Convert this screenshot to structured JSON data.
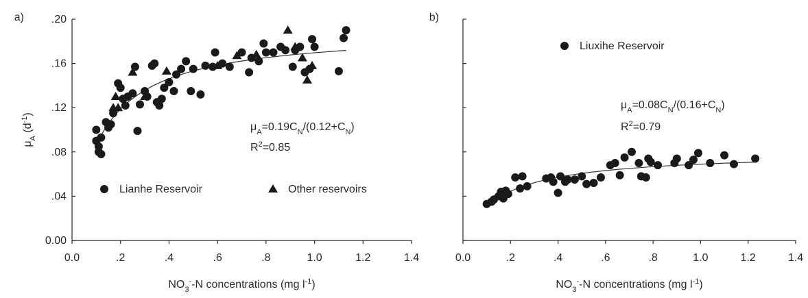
{
  "chart_data": [
    {
      "type": "scatter",
      "label": "a)",
      "xlabel": [
        {
          "text": "NO"
        },
        {
          "text": "3",
          "shift": "sub"
        },
        {
          "text": "-",
          "shift": "sup"
        },
        {
          "text": "-N concentrations (mg l"
        },
        {
          "text": "-1",
          "shift": "sup"
        },
        {
          "text": ")"
        }
      ],
      "ylabel": [
        {
          "text": "μ"
        },
        {
          "text": "A",
          "shift": "sub"
        },
        {
          "text": " (d"
        },
        {
          "text": "-1",
          "shift": "sup"
        },
        {
          "text": ")"
        }
      ],
      "equation": [
        {
          "text": "μ"
        },
        {
          "text": "A",
          "shift": "sub"
        },
        {
          "text": "=0.19C"
        },
        {
          "text": "N",
          "shift": "sub"
        },
        {
          "text": "/(0.12+C"
        },
        {
          "text": "N",
          "shift": "sub"
        },
        {
          "text": ")"
        }
      ],
      "r2": [
        {
          "text": "R"
        },
        {
          "text": "2",
          "shift": "sup"
        },
        {
          "text": "=0.85"
        }
      ],
      "xlim": [
        0,
        1.4
      ],
      "ylim": [
        0,
        0.2
      ],
      "xticks": [
        {
          "value": 0,
          "label": "0.0"
        },
        {
          "value": 0.2,
          "label": ".2"
        },
        {
          "value": 0.4,
          "label": ".4"
        },
        {
          "value": 0.6,
          "label": ".6"
        },
        {
          "value": 0.8,
          "label": ".8"
        },
        {
          "value": 1,
          "label": "1.0"
        },
        {
          "value": 1.2,
          "label": "1.2"
        },
        {
          "value": 1.4,
          "label": "1.4"
        }
      ],
      "yticks": [
        {
          "value": 0,
          "label": "0.00"
        },
        {
          "value": 0.04,
          "label": ".04"
        },
        {
          "value": 0.08,
          "label": ".08"
        },
        {
          "value": 0.12,
          "label": ".12"
        },
        {
          "value": 0.16,
          "label": ".16"
        },
        {
          "value": 0.2,
          "label": ".20"
        }
      ],
      "fit": {
        "a": 0.19,
        "k": 0.12,
        "xrange": [
          0.1,
          1.13
        ]
      },
      "series": [
        {
          "name": "Lianhe Reservoir",
          "marker": "circle",
          "color": "#1a1a1a",
          "x": [
            0.1,
            0.1,
            0.11,
            0.11,
            0.12,
            0.12,
            0.14,
            0.15,
            0.16,
            0.17,
            0.19,
            0.2,
            0.21,
            0.22,
            0.23,
            0.25,
            0.26,
            0.27,
            0.28,
            0.3,
            0.31,
            0.33,
            0.34,
            0.35,
            0.36,
            0.37,
            0.38,
            0.4,
            0.42,
            0.43,
            0.45,
            0.47,
            0.49,
            0.5,
            0.53,
            0.55,
            0.58,
            0.59,
            0.62,
            0.65,
            0.7,
            0.73,
            0.74,
            0.77,
            0.79,
            0.8,
            0.83,
            0.86,
            0.88,
            0.91,
            0.92,
            0.94,
            0.96,
            0.98,
            0.99,
            1.0,
            1.1,
            1.12,
            1.13
          ],
          "values": [
            0.1,
            0.09,
            0.085,
            0.08,
            0.078,
            0.093,
            0.107,
            0.102,
            0.105,
            0.115,
            0.142,
            0.138,
            0.128,
            0.122,
            0.13,
            0.133,
            0.157,
            0.099,
            0.123,
            0.135,
            0.13,
            0.158,
            0.16,
            0.125,
            0.122,
            0.128,
            0.138,
            0.143,
            0.135,
            0.15,
            0.155,
            0.162,
            0.135,
            0.155,
            0.132,
            0.158,
            0.157,
            0.17,
            0.16,
            0.157,
            0.17,
            0.152,
            0.165,
            0.162,
            0.178,
            0.17,
            0.17,
            0.175,
            0.172,
            0.157,
            0.172,
            0.175,
            0.152,
            0.155,
            0.182,
            0.175,
            0.153,
            0.183,
            0.19
          ]
        },
        {
          "name": "Other reservoirs",
          "marker": "triangle",
          "color": "#1a1a1a",
          "x": [
            0.17,
            0.18,
            0.19,
            0.25,
            0.3,
            0.39,
            0.6,
            0.68,
            0.76,
            0.89,
            0.92,
            0.97,
            0.99,
            0.95
          ],
          "values": [
            0.12,
            0.13,
            0.12,
            0.152,
            0.13,
            0.153,
            0.158,
            0.167,
            0.168,
            0.19,
            0.175,
            0.145,
            0.158,
            0.165
          ]
        }
      ]
    },
    {
      "type": "scatter",
      "label": "b)",
      "xlabel": [
        {
          "text": "NO"
        },
        {
          "text": "3",
          "shift": "sub"
        },
        {
          "text": "-",
          "shift": "sup"
        },
        {
          "text": "-N concentrations (mg l"
        },
        {
          "text": "-1",
          "shift": "sup"
        },
        {
          "text": ")"
        }
      ],
      "equation": [
        {
          "text": "μ"
        },
        {
          "text": "A",
          "shift": "sub"
        },
        {
          "text": "=0.08C"
        },
        {
          "text": "N",
          "shift": "sub"
        },
        {
          "text": "/(0.16+C"
        },
        {
          "text": "N",
          "shift": "sub"
        },
        {
          "text": ")"
        }
      ],
      "r2": [
        {
          "text": "R"
        },
        {
          "text": "2",
          "shift": "sup"
        },
        {
          "text": "=0.79"
        }
      ],
      "xlim": [
        0,
        1.4
      ],
      "ylim": [
        0,
        0.2
      ],
      "xticks": [
        {
          "value": 0,
          "label": "0.0"
        },
        {
          "value": 0.2,
          "label": ".2"
        },
        {
          "value": 0.4,
          "label": ".4"
        },
        {
          "value": 0.6,
          "label": ".6"
        },
        {
          "value": 0.8,
          "label": ".8"
        },
        {
          "value": 1,
          "label": "1.0"
        },
        {
          "value": 1.2,
          "label": "1.2"
        },
        {
          "value": 1.4,
          "label": "1.4"
        }
      ],
      "yticks": [
        0,
        0.04,
        0.08,
        0.12,
        0.16,
        0.2
      ],
      "fit": {
        "a": 0.08,
        "k": 0.16,
        "xrange": [
          0.1,
          1.23
        ]
      },
      "series": [
        {
          "name": "Liuxihe Reservoir",
          "marker": "circle",
          "color": "#1a1a1a",
          "x": [
            0.1,
            0.12,
            0.13,
            0.15,
            0.16,
            0.17,
            0.18,
            0.19,
            0.22,
            0.24,
            0.25,
            0.27,
            0.35,
            0.37,
            0.38,
            0.4,
            0.41,
            0.43,
            0.44,
            0.47,
            0.5,
            0.52,
            0.55,
            0.58,
            0.62,
            0.64,
            0.66,
            0.68,
            0.71,
            0.74,
            0.75,
            0.77,
            0.78,
            0.79,
            0.82,
            0.89,
            0.9,
            0.95,
            0.97,
            0.99,
            1.04,
            1.1,
            1.14,
            1.23
          ],
          "values": [
            0.033,
            0.035,
            0.037,
            0.04,
            0.044,
            0.038,
            0.045,
            0.042,
            0.057,
            0.047,
            0.058,
            0.049,
            0.056,
            0.057,
            0.053,
            0.043,
            0.058,
            0.053,
            0.055,
            0.055,
            0.058,
            0.051,
            0.052,
            0.057,
            0.068,
            0.07,
            0.059,
            0.075,
            0.08,
            0.07,
            0.058,
            0.057,
            0.074,
            0.071,
            0.068,
            0.07,
            0.074,
            0.068,
            0.073,
            0.079,
            0.07,
            0.077,
            0.069,
            0.074
          ]
        }
      ]
    }
  ]
}
